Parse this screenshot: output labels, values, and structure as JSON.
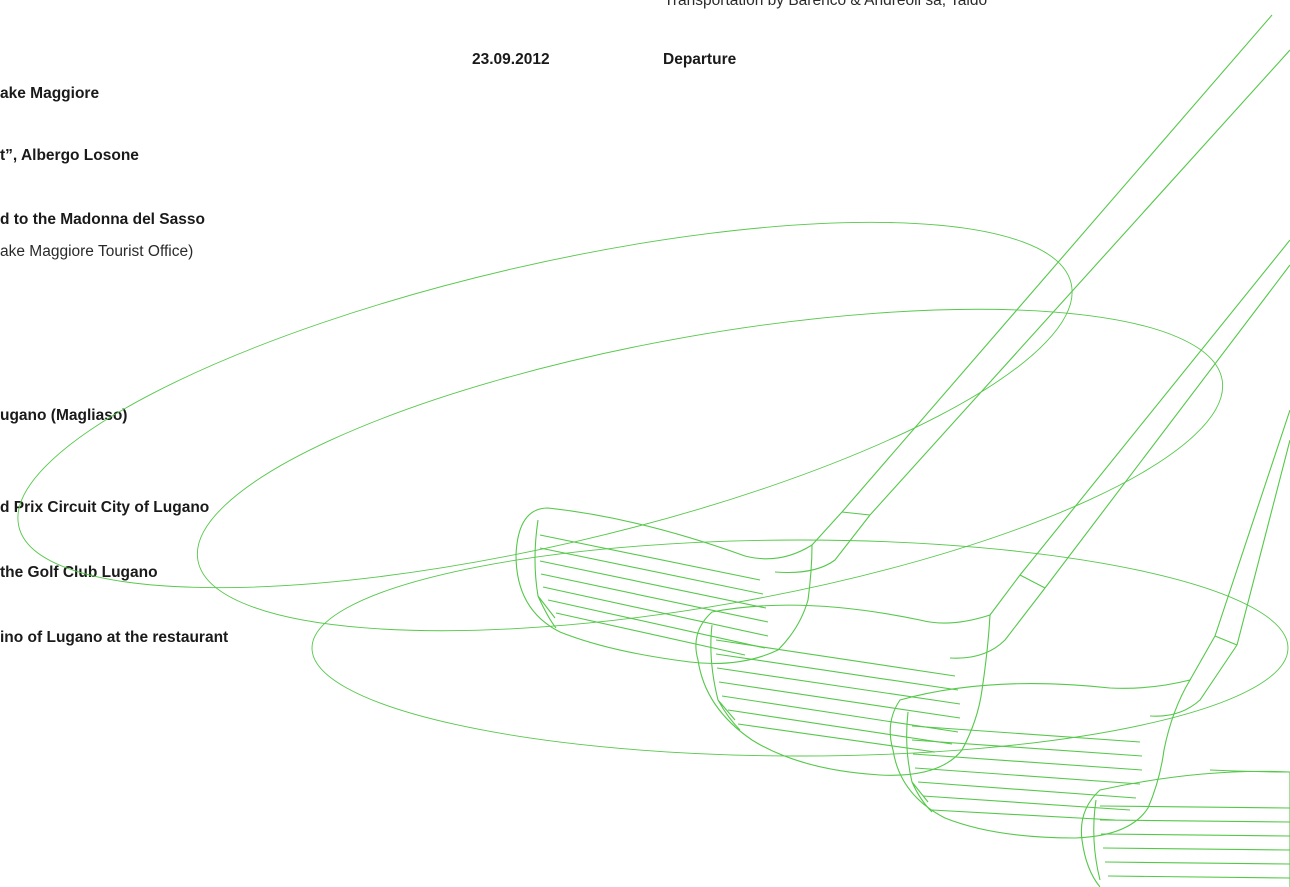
{
  "header": {
    "transport_note": "Transportation by Barenco & Andreoli sa, Taido"
  },
  "left_column": [
    {
      "text": "ake Maggiore",
      "weight": "bold"
    },
    {
      "text": "t”, Albergo Losone",
      "weight": "bold"
    },
    {
      "text": "d to the Madonna del Sasso",
      "weight": "bold"
    },
    {
      "text": "ake Maggiore Tourist Office)",
      "weight": "regular"
    },
    {
      "text": "ugano (Magliaso)",
      "weight": "bold"
    },
    {
      "text": "d Prix Circuit City of Lugano",
      "weight": "bold"
    },
    {
      "text": " the Golf Club Lugano",
      "weight": "bold"
    },
    {
      "text": "ino of Lugano at the restaurant",
      "weight": "bold"
    }
  ],
  "departure": {
    "date": "23.09.2012",
    "label": "Departure"
  },
  "illustration": {
    "subject": "golf-clubs-icon",
    "stroke_color": "#55c84a",
    "club_count": 4
  }
}
